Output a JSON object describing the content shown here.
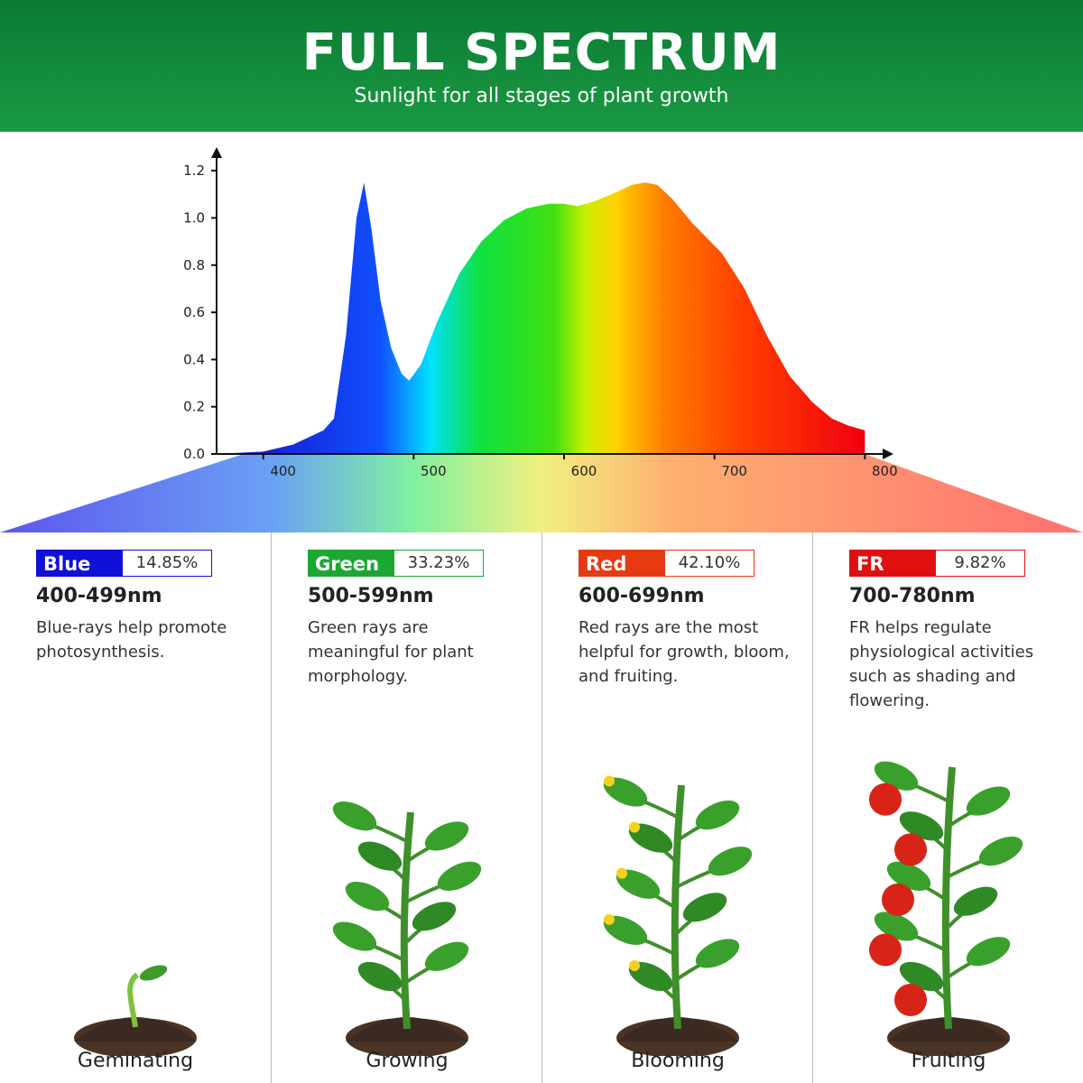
{
  "header": {
    "title": "FULL SPECTRUM",
    "subtitle": "Sunlight for all stages of plant growth"
  },
  "chart_data": {
    "type": "area",
    "x": [
      369,
      400,
      420,
      440,
      447,
      455,
      462,
      467,
      472,
      478,
      485,
      492,
      497,
      505,
      515,
      530,
      545,
      560,
      575,
      590,
      600,
      609,
      620,
      635,
      645,
      654,
      662,
      672,
      685,
      705,
      720,
      735,
      750,
      765,
      778,
      789,
      800
    ],
    "values": [
      0,
      0.01,
      0.04,
      0.1,
      0.15,
      0.5,
      1.0,
      1.15,
      0.95,
      0.65,
      0.45,
      0.34,
      0.31,
      0.38,
      0.55,
      0.76,
      0.9,
      0.99,
      1.04,
      1.06,
      1.06,
      1.05,
      1.07,
      1.11,
      1.14,
      1.15,
      1.14,
      1.08,
      0.98,
      0.85,
      0.7,
      0.5,
      0.33,
      0.22,
      0.15,
      0.12,
      0.1
    ],
    "xlim": [
      369,
      819
    ],
    "ylim": [
      0,
      1.3
    ],
    "xticks": [
      400,
      500,
      600,
      700,
      800
    ],
    "yticks": [
      {
        "value": 0,
        "label": "0.0"
      },
      0.2,
      0.4,
      0.6,
      0.8,
      {
        "value": 1,
        "label": "1.0"
      },
      1.2
    ]
  },
  "panels": [
    {
      "name": "Blue",
      "percent": "14.85%",
      "range": "400-499nm",
      "description": "Blue-rays help promote photosynthesis.",
      "stage": "Geminating",
      "color": "#1010d8"
    },
    {
      "name": "Green",
      "percent": "33.23%",
      "range": "500-599nm",
      "description": "Green rays are meaningful for plant morphology.",
      "stage": "Growing",
      "color": "#1aa832"
    },
    {
      "name": "Red",
      "percent": "42.10%",
      "range": "600-699nm",
      "description": "Red rays are the most helpful for growth, bloom, and fruiting.",
      "stage": "Blooming",
      "color": "#e63a12"
    },
    {
      "name": "FR",
      "percent": "9.82%",
      "range": "700-780nm",
      "description": "FR helps regulate physiological activities such as shading and flowering.",
      "stage": "Fruiting",
      "color": "#e01010"
    }
  ]
}
